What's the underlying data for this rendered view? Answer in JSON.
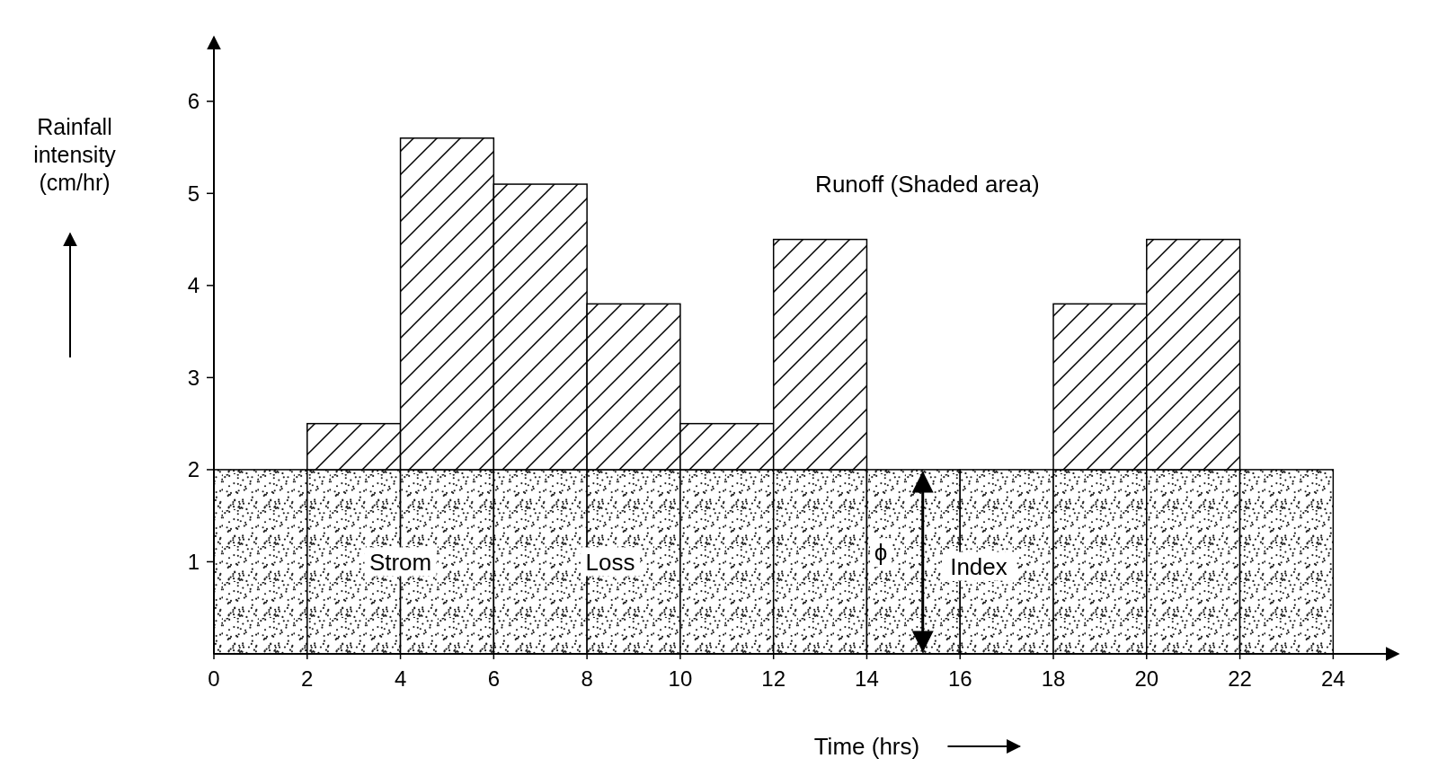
{
  "chart_data": {
    "type": "bar",
    "xlabel": "Time (hrs)",
    "ylabel": "Rainfall intensity (cm/hr)",
    "series": [
      {
        "color": "#000000",
        "x": [
          1,
          3,
          5,
          7,
          9,
          11,
          13,
          15,
          17,
          19,
          21,
          23
        ],
        "base": [
          0,
          0,
          0,
          0,
          0,
          0,
          0,
          0,
          0,
          0,
          0,
          0
        ],
        "values": [
          2,
          2,
          2,
          2,
          2,
          2,
          2,
          2,
          2,
          2,
          2,
          2
        ]
      },
      {
        "color": "#000000",
        "x": [
          3,
          5,
          7,
          9,
          11,
          13,
          19,
          21
        ],
        "base": [
          2,
          2,
          2,
          2,
          2,
          2,
          2,
          2
        ],
        "values": [
          0.5,
          3.6,
          3.1,
          1.8,
          0.5,
          2.5,
          1.8,
          2.5
        ]
      }
    ],
    "xlim": [
      0,
      25.4
    ],
    "xticks": [
      0,
      2,
      4,
      6,
      8,
      10,
      12,
      14,
      16,
      18,
      20,
      22,
      24
    ],
    "ylim": [
      0,
      6.7
    ],
    "yticks": [
      1,
      2,
      3,
      4,
      5,
      6
    ],
    "annotations": [
      "Runoff (Shaded area)",
      "Strom",
      "Loss",
      "ϕ",
      "Index"
    ],
    "grid": false
  }
}
